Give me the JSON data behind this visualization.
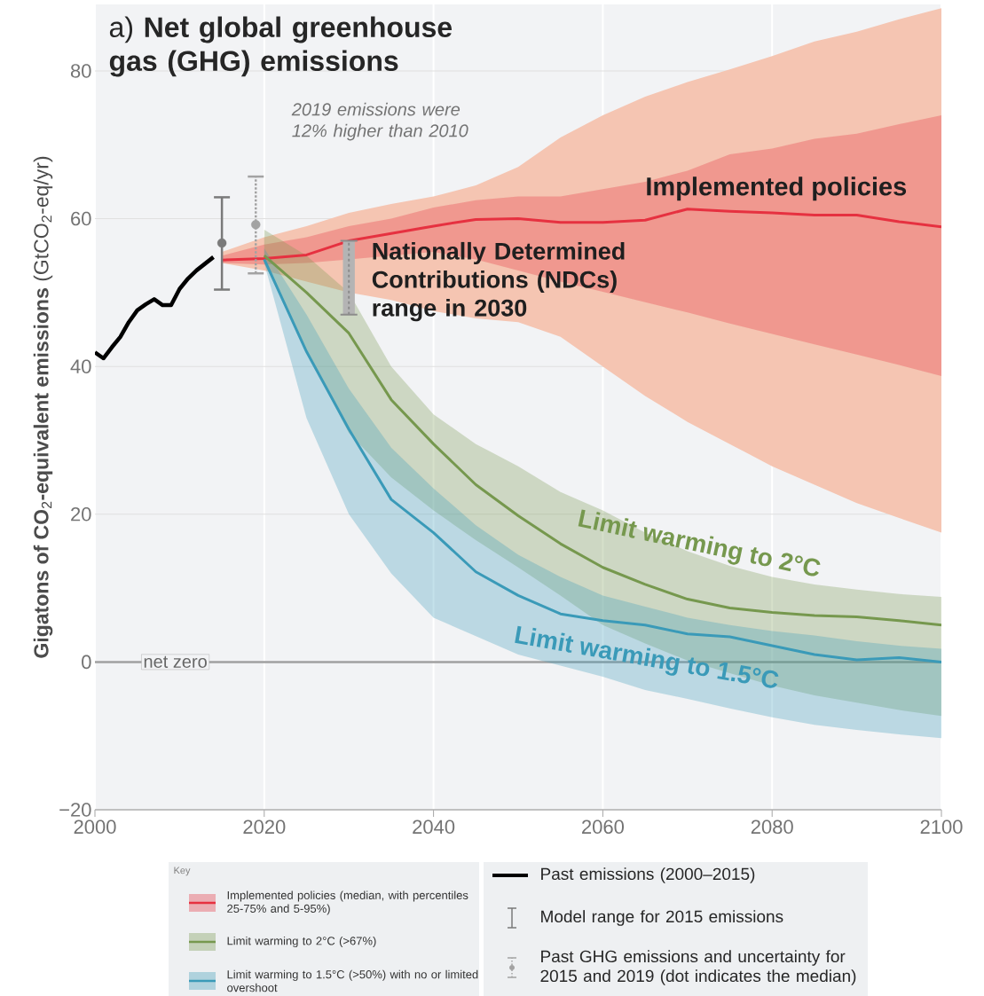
{
  "chart_data": {
    "type": "line",
    "title": "a) **Net global greenhouse gas (GHG) emissions**",
    "ylabel": "**Gigatons of CO**$_{2}$**-equivalent emissions** (GtCO$_{2}$-eq/yr)",
    "legend_title": "Key",
    "legend": "bottom",
    "grid": true,
    "xlim": [
      2000,
      2100
    ],
    "ylim": [
      -20,
      89
    ],
    "xticks": [
      2000,
      2020,
      2040,
      2060,
      2080,
      2100
    ],
    "yticks": [
      {
        "value": -20,
        "label": "−20"
      },
      0,
      20,
      40,
      60,
      80
    ],
    "ref_lines": [
      {
        "axis": "y",
        "value": 0,
        "label": "net zero",
        "color": "#a0a0a0"
      }
    ],
    "annotations": [
      {
        "text": "2019 emissions were 12% higher than 2010",
        "x": 2019,
        "y": 65.7
      },
      {
        "text": "Implemented policies",
        "x": 2070,
        "y": 61.3
      },
      {
        "text": "Nationally Determined Contributions (NDCs) range in 2030",
        "x": 2030,
        "y": 57
      },
      {
        "text": "Limit warming to 2°C",
        "x": 2070,
        "y": 8.5
      },
      {
        "text": "Limit warming to 1.5°C",
        "x": 2065,
        "y": 5
      }
    ],
    "series": [
      {
        "color": "#f5c5b2",
        "x": [
          2015,
          2020,
          2025,
          2030,
          2035,
          2040,
          2045,
          2050,
          2055,
          2060,
          2065,
          2070,
          2075,
          2080,
          2085,
          2090,
          2095,
          2100
        ],
        "values": [
          null,
          null,
          null,
          null,
          null,
          null,
          null,
          null,
          null,
          null,
          null,
          null,
          null,
          null,
          null,
          null,
          null,
          null
        ],
        "lower": [
          54,
          53,
          51.5,
          50,
          49,
          47.5,
          46.5,
          46,
          44,
          40,
          36,
          32.5,
          29.5,
          26.5,
          24,
          21.5,
          19.5,
          17.5
        ],
        "upper": [
          55.5,
          57.5,
          59,
          60.8,
          62,
          63,
          64.5,
          67,
          71,
          74,
          76.5,
          78.5,
          80.2,
          82,
          84,
          85.3,
          87,
          88.5
        ]
      },
      {
        "name": "Implemented policies (median, with percentiles 25-75% and 5-95%)",
        "color": "#e63140",
        "x": [
          2015,
          2020,
          2025,
          2030,
          2035,
          2040,
          2045,
          2050,
          2055,
          2060,
          2065,
          2070,
          2075,
          2080,
          2085,
          2090,
          2095,
          2100
        ],
        "values": [
          54.4,
          54.6,
          55.1,
          57,
          58,
          59,
          59.9,
          60,
          59.5,
          59.5,
          59.8,
          61.3,
          61,
          60.8,
          60.5,
          60.5,
          59.6,
          58.9
        ],
        "lower": [
          54,
          53.8,
          54,
          54.5,
          55,
          55.5,
          54.5,
          53,
          51.5,
          50.1,
          48.7,
          47.3,
          45.8,
          44.4,
          43,
          41.6,
          40.2,
          38.7
        ],
        "upper": [
          55,
          56.5,
          57.5,
          59,
          60,
          61.5,
          62.5,
          63,
          63,
          64,
          65,
          66.5,
          68.7,
          69.5,
          70.8,
          71.5,
          72.8,
          74
        ]
      },
      {
        "name": "Limit warming to 2°C (>67%)",
        "color": "#76984e",
        "x": [
          2020,
          2025,
          2030,
          2035,
          2040,
          2045,
          2050,
          2055,
          2060,
          2065,
          2070,
          2075,
          2080,
          2085,
          2090,
          2095,
          2100
        ],
        "values": [
          55,
          50,
          44.5,
          35.5,
          29.5,
          24,
          19.8,
          16,
          12.8,
          10.5,
          8.5,
          7.3,
          6.7,
          6.3,
          6.1,
          5.6,
          5
        ],
        "lower": [
          54,
          42,
          31,
          25,
          20.5,
          16.5,
          12.8,
          9,
          5,
          2.5,
          0.2,
          -1.5,
          -3.2,
          -4.5,
          -5.5,
          -6.5,
          -7.3
        ],
        "upper": [
          58.5,
          55,
          50,
          40,
          33.5,
          29.5,
          26.5,
          23,
          20.5,
          17.5,
          15,
          13,
          11.5,
          10.5,
          9.8,
          9.2,
          8.8
        ]
      },
      {
        "name": "Limit warming to 1.5°C (>50%) with no or limited overshoot",
        "color": "#3a9ab8",
        "x": [
          2020,
          2025,
          2030,
          2035,
          2040,
          2045,
          2050,
          2055,
          2060,
          2065,
          2070,
          2075,
          2080,
          2085,
          2090,
          2095,
          2100
        ],
        "values": [
          54.5,
          42,
          31.5,
          22,
          17.5,
          12.2,
          9,
          6.5,
          5.6,
          5,
          3.8,
          3.4,
          2.2,
          1,
          0.3,
          0.6,
          0
        ],
        "lower": [
          54,
          33,
          20,
          12,
          6,
          3.5,
          1,
          -0.5,
          -2,
          -3.8,
          -5,
          -6.3,
          -7.5,
          -8.5,
          -9.2,
          -9.8,
          -10.3
        ],
        "upper": [
          56,
          47,
          37,
          29,
          23.5,
          18.5,
          14.5,
          11.5,
          9,
          7.5,
          6,
          5,
          4.2,
          3.6,
          2.8,
          2.2,
          1.8
        ]
      },
      {
        "name": "Past emissions (2000–2015)",
        "color": "#000000",
        "x": [
          2000,
          2001,
          2002,
          2003,
          2004,
          2005,
          2006,
          2007,
          2008,
          2009,
          2010,
          2011,
          2012,
          2013,
          2014
        ],
        "values": [
          41.9,
          41.1,
          42.6,
          44,
          46,
          47.6,
          48.4,
          49.1,
          48.3,
          48.3,
          50.5,
          51.9,
          53,
          53.9,
          54.8
        ]
      },
      {
        "name": "Model range for 2015 emissions",
        "type": "scatter",
        "color": "#7a7a7a",
        "marker": "circle",
        "line_style": "solid",
        "x": [
          2015
        ],
        "values": [
          56.7
        ],
        "errors": [
          [
            50.4,
            62.9
          ]
        ]
      },
      {
        "name": "Past GHG emissions and uncertainty for 2015 and 2019 (dot indicates the median)",
        "type": "scatter",
        "color": "#a3a3a3",
        "marker": "circle",
        "line_style": "dotted",
        "x": [
          2019
        ],
        "values": [
          59.2
        ],
        "errors": [
          [
            52.6,
            65.7
          ]
        ]
      },
      {
        "type": "bar",
        "color": "#b4b4b4",
        "line_style": "dashed",
        "x": [
          2030
        ],
        "base": [
          47
        ],
        "values": [
          10
        ]
      }
    ]
  }
}
